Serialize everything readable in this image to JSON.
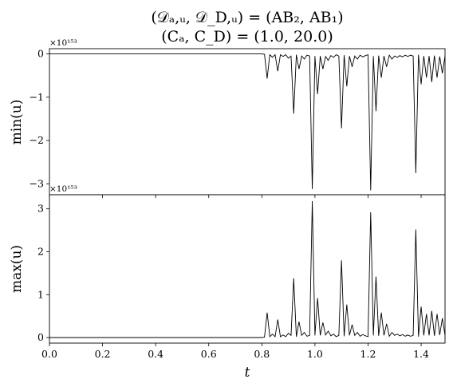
{
  "chart_data": {
    "type": "line",
    "title": [
      "(𝒟ₐ,ᵤ, 𝒟_D,ᵤ) = (AB₂, AB₁)",
      "(Cₐ, C_D) = (1.0, 20.0)"
    ],
    "xlabel": "t",
    "xlim": [
      0.0,
      1.49
    ],
    "x_ticks": [
      "0.0",
      "0.2",
      "0.4",
      "0.6",
      "0.8",
      "1.0",
      "1.2",
      "1.4"
    ],
    "line_color": "#000000",
    "panels": [
      {
        "ylabel": "min(u)",
        "scale_label": "×10¹⁵³",
        "ylim": [
          -3.25,
          0.12
        ],
        "y_ticks": [
          "0",
          "−1",
          "−2",
          "−3"
        ],
        "x": [
          0.0,
          0.8,
          0.81,
          0.82,
          0.83,
          0.84,
          0.85,
          0.86,
          0.87,
          0.88,
          0.89,
          0.9,
          0.91,
          0.92,
          0.93,
          0.94,
          0.95,
          0.96,
          0.97,
          0.98,
          0.99,
          1.0,
          1.01,
          1.02,
          1.03,
          1.04,
          1.05,
          1.06,
          1.07,
          1.08,
          1.09,
          1.1,
          1.11,
          1.12,
          1.13,
          1.14,
          1.15,
          1.16,
          1.17,
          1.18,
          1.19,
          1.2,
          1.21,
          1.22,
          1.23,
          1.24,
          1.25,
          1.26,
          1.27,
          1.28,
          1.29,
          1.3,
          1.31,
          1.32,
          1.33,
          1.34,
          1.35,
          1.36,
          1.37,
          1.38,
          1.39,
          1.4,
          1.41,
          1.42,
          1.43,
          1.44,
          1.45,
          1.46,
          1.47,
          1.48,
          1.49
        ],
        "y": [
          0.0,
          0.0,
          -0.01,
          -0.57,
          -0.02,
          -0.08,
          -0.02,
          -0.4,
          -0.02,
          -0.06,
          -0.02,
          -0.1,
          -0.05,
          -1.38,
          -0.02,
          -0.35,
          -0.05,
          -0.12,
          -0.03,
          -0.05,
          -3.12,
          -0.05,
          -0.93,
          -0.05,
          -0.35,
          -0.06,
          -0.15,
          -0.04,
          -0.08,
          -0.02,
          -0.05,
          -1.72,
          -0.03,
          -0.75,
          -0.05,
          -0.3,
          -0.05,
          -0.12,
          -0.03,
          -0.07,
          -0.04,
          -0.02,
          -3.15,
          -0.05,
          -1.32,
          -0.04,
          -0.55,
          -0.05,
          -0.3,
          -0.03,
          -0.12,
          -0.05,
          -0.08,
          -0.04,
          -0.07,
          -0.03,
          -0.06,
          -0.03,
          -0.05,
          -2.75,
          -0.02,
          -0.7,
          -0.05,
          -0.55,
          -0.05,
          -0.65,
          -0.04,
          -0.55,
          -0.06,
          -0.45,
          -0.05
        ]
      },
      {
        "ylabel": "max(u)",
        "scale_label": "×10¹⁵³",
        "ylim": [
          -0.13,
          3.33
        ],
        "y_ticks": [
          "0",
          "1",
          "2",
          "3"
        ],
        "x": [
          0.0,
          0.8,
          0.81,
          0.82,
          0.83,
          0.84,
          0.85,
          0.86,
          0.87,
          0.88,
          0.89,
          0.9,
          0.91,
          0.92,
          0.93,
          0.94,
          0.95,
          0.96,
          0.97,
          0.98,
          0.99,
          1.0,
          1.01,
          1.02,
          1.03,
          1.04,
          1.05,
          1.06,
          1.07,
          1.08,
          1.09,
          1.1,
          1.11,
          1.12,
          1.13,
          1.14,
          1.15,
          1.16,
          1.17,
          1.18,
          1.19,
          1.2,
          1.21,
          1.22,
          1.23,
          1.24,
          1.25,
          1.26,
          1.27,
          1.28,
          1.29,
          1.3,
          1.31,
          1.32,
          1.33,
          1.34,
          1.35,
          1.36,
          1.37,
          1.38,
          1.39,
          1.4,
          1.41,
          1.42,
          1.43,
          1.44,
          1.45,
          1.46,
          1.47,
          1.48,
          1.49
        ],
        "y": [
          0.0,
          0.0,
          0.01,
          0.58,
          0.02,
          0.08,
          0.02,
          0.42,
          0.02,
          0.06,
          0.02,
          0.1,
          0.05,
          1.38,
          0.02,
          0.37,
          0.05,
          0.12,
          0.03,
          0.05,
          3.18,
          0.05,
          0.92,
          0.05,
          0.35,
          0.06,
          0.15,
          0.04,
          0.08,
          0.02,
          0.05,
          1.8,
          0.03,
          0.77,
          0.05,
          0.3,
          0.05,
          0.12,
          0.03,
          0.07,
          0.04,
          0.02,
          2.92,
          0.05,
          1.42,
          0.04,
          0.58,
          0.05,
          0.32,
          0.03,
          0.12,
          0.05,
          0.08,
          0.04,
          0.07,
          0.03,
          0.06,
          0.03,
          0.05,
          2.52,
          0.02,
          0.72,
          0.05,
          0.55,
          0.05,
          0.62,
          0.04,
          0.55,
          0.06,
          0.45,
          0.05
        ]
      }
    ]
  }
}
